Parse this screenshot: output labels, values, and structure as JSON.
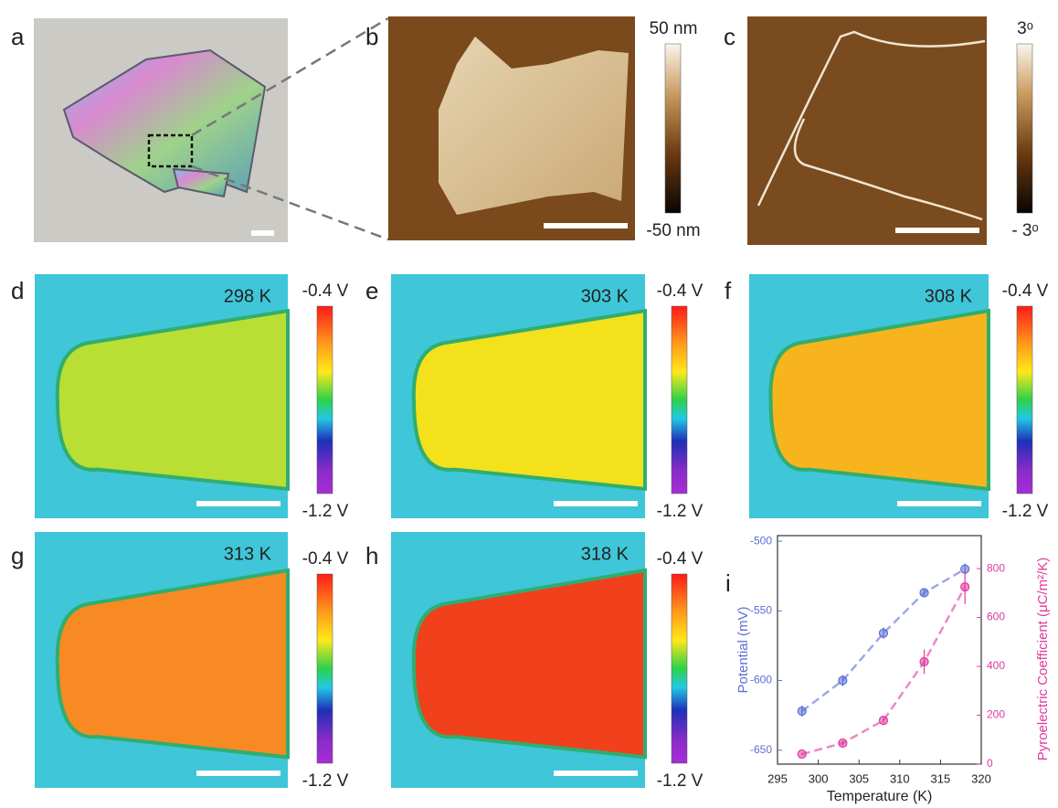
{
  "panels": [
    {
      "label": "a"
    },
    {
      "label": "b",
      "colorbar": {
        "top": "50 nm",
        "bottom": "-50 nm"
      }
    },
    {
      "label": "c",
      "colorbar": {
        "top": "3ᵒ",
        "bottom": "- 3ᵒ"
      }
    },
    {
      "label": "d",
      "temperature": "298 K",
      "colorbar": {
        "top": "-0.4 V",
        "bottom": "-1.2 V"
      }
    },
    {
      "label": "e",
      "temperature": "303 K",
      "colorbar": {
        "top": "-0.4 V",
        "bottom": "-1.2 V"
      }
    },
    {
      "label": "f",
      "temperature": "308 K",
      "colorbar": {
        "top": "-0.4 V",
        "bottom": "-1.2 V"
      }
    },
    {
      "label": "g",
      "temperature": "313 K",
      "colorbar": {
        "top": "-0.4 V",
        "bottom": "-1.2 V"
      }
    },
    {
      "label": "h",
      "temperature": "318 K",
      "colorbar": {
        "top": "-0.4 V",
        "bottom": "-1.2 V"
      }
    },
    {
      "label": "i"
    }
  ],
  "chart_data": {
    "type": "scatter",
    "x_label": "Temperature (K)",
    "y_label": "Potential (mV)",
    "y2_label": "Pyroelectric Coefficient (μC/m²/K)",
    "x": [
      298,
      303,
      308,
      313,
      318
    ],
    "series": [
      {
        "color": "#5b6fd6",
        "values": [
          -622,
          -600,
          -566,
          -537,
          -520
        ],
        "errors": [
          4,
          4,
          4,
          3,
          4
        ]
      },
      {
        "color": "#e0399e",
        "axis": "y2",
        "values": [
          41,
          86,
          179,
          419,
          725
        ],
        "errors": [
          5,
          10,
          10,
          50,
          70
        ]
      }
    ],
    "xlim": [
      295,
      320
    ],
    "xticks": [
      295,
      300,
      305,
      310,
      315,
      320
    ],
    "ylim": [
      -660,
      -496
    ],
    "yticks": [
      -650,
      -600,
      -550,
      -500
    ],
    "y2lim": [
      0,
      935
    ],
    "y2ticks": [
      0,
      200,
      400,
      600,
      800
    ]
  }
}
